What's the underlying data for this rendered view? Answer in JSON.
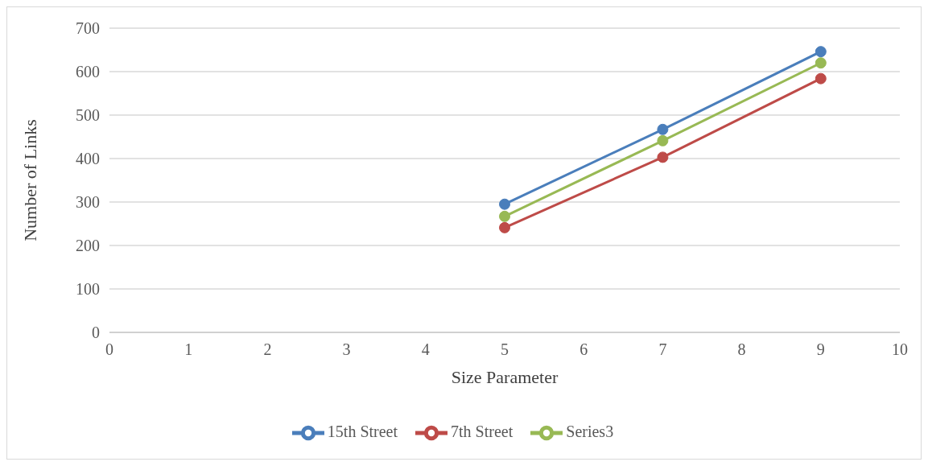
{
  "chart_data": {
    "type": "line",
    "xlabel": "Size Parameter",
    "ylabel": "Number of Links",
    "x": [
      5,
      7,
      9
    ],
    "series": [
      {
        "name": "15th Street",
        "color": "#4a7ebb",
        "values": [
          295,
          467,
          646
        ]
      },
      {
        "name": "7th Street",
        "color": "#be4b48",
        "values": [
          241,
          403,
          584
        ]
      },
      {
        "name": "Series3",
        "color": "#98b954",
        "values": [
          267,
          441,
          620
        ]
      }
    ],
    "xlim": [
      0,
      10
    ],
    "xticks": [
      0,
      1,
      2,
      3,
      4,
      5,
      6,
      7,
      8,
      9,
      10
    ],
    "ylim": [
      0,
      700
    ],
    "yticks": [
      0,
      100,
      200,
      300,
      400,
      500,
      600,
      700
    ],
    "grid": "y",
    "legend": "bottom",
    "marker": "circle",
    "line_style": "solid"
  }
}
